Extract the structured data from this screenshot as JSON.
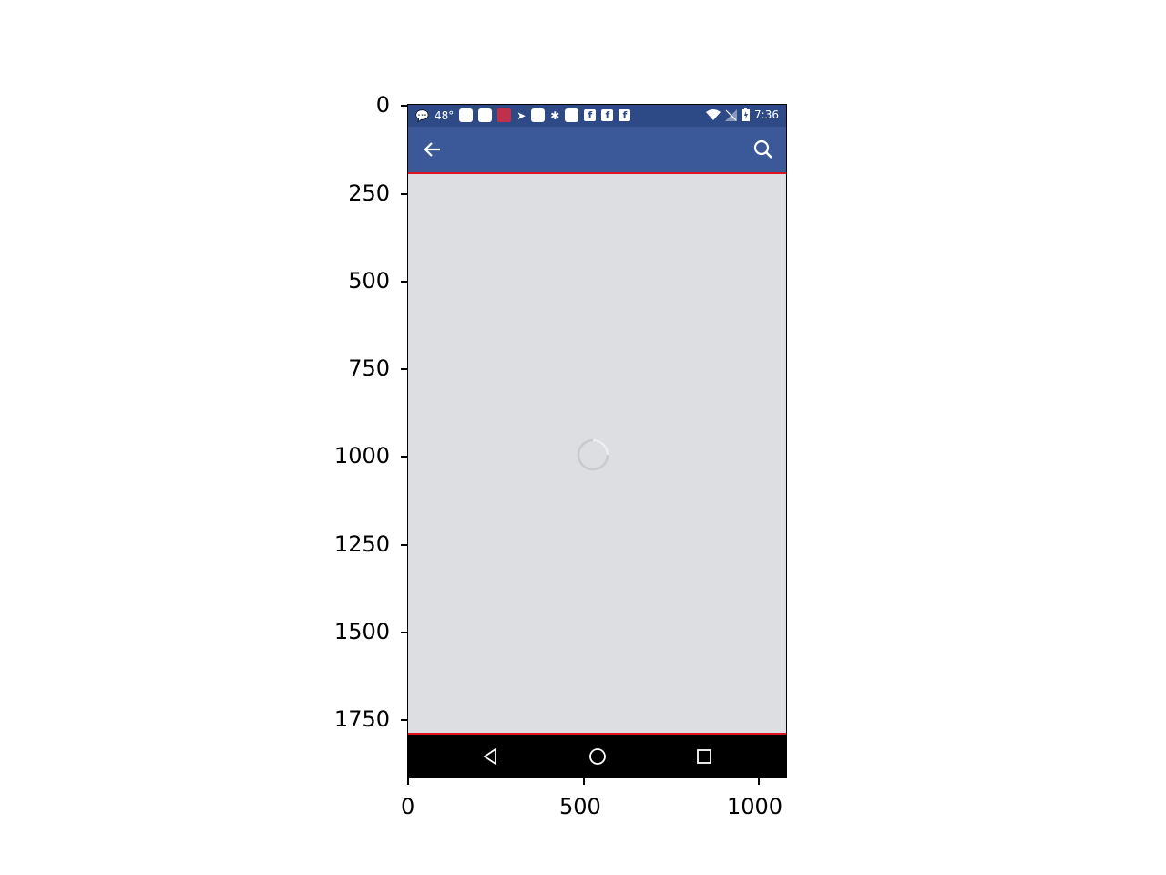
{
  "status_bar": {
    "temperature": "48°",
    "time": "7:36",
    "facebook_glyph": "f"
  },
  "toolbar": {
    "back_icon": "arrow-left-icon",
    "search_icon": "search-icon"
  },
  "content": {
    "state": "loading",
    "spinner_icon": "loading-spinner-icon"
  },
  "nav_bar": {
    "back": "triangle-back-icon",
    "home": "circle-home-icon",
    "recents": "square-recents-icon"
  },
  "axes": {
    "y_ticks": [
      "0",
      "250",
      "500",
      "750",
      "1000",
      "1250",
      "1500",
      "1750"
    ],
    "x_ticks": [
      "0",
      "500",
      "1000"
    ]
  },
  "colors": {
    "status_bar": "#2e4a86",
    "toolbar": "#3b5998",
    "content_bg": "#dddee2",
    "highlight_border": "#e0121f",
    "nav_bar": "#000000"
  }
}
